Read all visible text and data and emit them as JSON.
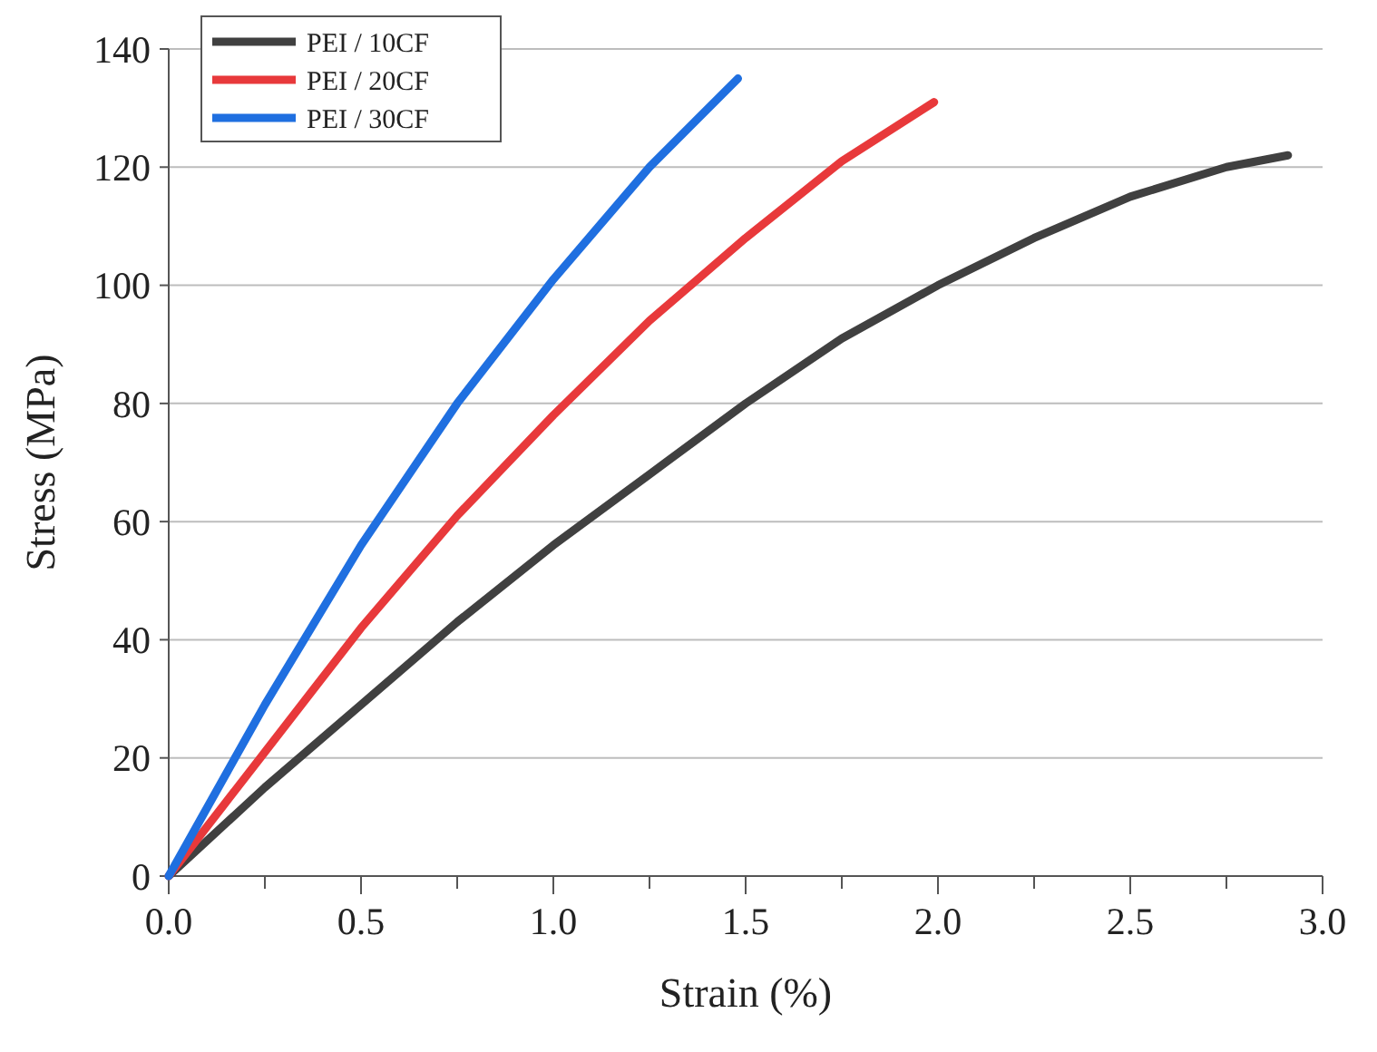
{
  "chart_data": {
    "type": "line",
    "xlabel": "Strain (%)",
    "ylabel": "Stress (MPa)",
    "xlim": [
      0,
      3
    ],
    "ylim": [
      0,
      140
    ],
    "xticks": [
      {
        "value": 0,
        "label": "0.0"
      },
      {
        "value": 0.25,
        "label": null
      },
      {
        "value": 0.5,
        "label": "0.5"
      },
      {
        "value": 0.75,
        "label": null
      },
      {
        "value": 1,
        "label": "1.0"
      },
      {
        "value": 1.25,
        "label": null
      },
      {
        "value": 1.5,
        "label": "1.5"
      },
      {
        "value": 1.75,
        "label": null
      },
      {
        "value": 2,
        "label": "2.0"
      },
      {
        "value": 2.25,
        "label": null
      },
      {
        "value": 2.5,
        "label": "2.5"
      },
      {
        "value": 2.75,
        "label": null
      },
      {
        "value": 3,
        "label": "3.0"
      }
    ],
    "yticks": [
      0,
      20,
      40,
      60,
      80,
      100,
      120,
      140
    ],
    "grid": "y",
    "legend": "top left",
    "marker": "none",
    "line_style": "solid",
    "series": [
      {
        "name": "PEI / 10CF",
        "color": "#404040",
        "x": [
          0,
          0.25,
          0.5,
          0.75,
          1,
          1.25,
          1.5,
          1.75,
          2,
          2.25,
          2.5,
          2.75,
          2.91
        ],
        "values": [
          0,
          15,
          29,
          43,
          56,
          68,
          80,
          91,
          100,
          108,
          115,
          120,
          122
        ]
      },
      {
        "name": "PEI / 20CF",
        "color": "#e8393b",
        "x": [
          0,
          0.25,
          0.5,
          0.75,
          1,
          1.25,
          1.5,
          1.75,
          1.99
        ],
        "values": [
          0,
          21,
          42,
          61,
          78,
          94,
          108,
          121,
          131
        ]
      },
      {
        "name": "PEI / 30CF",
        "color": "#1f6fe0",
        "x": [
          0,
          0.25,
          0.5,
          0.75,
          1,
          1.25,
          1.48
        ],
        "values": [
          0,
          29,
          56,
          80,
          101,
          120,
          135
        ]
      }
    ]
  }
}
